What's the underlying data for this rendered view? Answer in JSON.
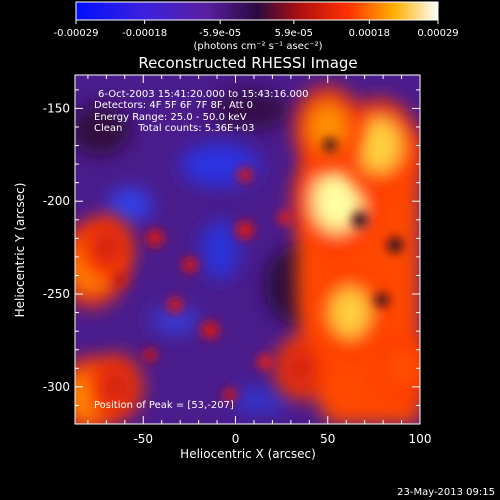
{
  "colorbar": {
    "tick_labels": [
      "-0.00029",
      "-0.00018",
      "-5.9e-05",
      "5.9e-05",
      "0.00018",
      "0.00029"
    ],
    "tick_values": [
      -0.00029,
      -0.00018,
      -5.9e-05,
      5.9e-05,
      0.00018,
      0.00029
    ],
    "range": [
      -0.00029,
      0.00029
    ],
    "unit_label": "(photons cm⁻² s⁻¹ asec⁻²)"
  },
  "info": {
    "line1": "6-Oct-2003 15:41:20.000 to 15:43:16.000",
    "line2": "Detectors: 4F 5F 6F 7F 8F, Att 0",
    "line3": "Energy Range: 25.0 - 50.0 keV",
    "line4": "Clean     Total counts: 5.36E+03",
    "peak": "Position of Peak = [53,-207]"
  },
  "footer": {
    "timestamp": "23-May-2013 09:15"
  },
  "chart_data": {
    "type": "heatmap",
    "title": "Reconstructed RHESSI Image",
    "xlabel": "Heliocentric X (arcsec)",
    "ylabel": "Heliocentric Y (arcsec)",
    "xlim": [
      -87,
      100
    ],
    "ylim": [
      -320,
      -132
    ],
    "x_ticks": [
      -50,
      0,
      50,
      100
    ],
    "x_tick_labels": [
      "-50",
      "0",
      "50",
      "100"
    ],
    "y_ticks": [
      -150,
      -200,
      -250,
      -300
    ],
    "y_tick_labels": [
      "-150",
      "-200",
      "-250",
      "-300"
    ],
    "colormap": [
      "#0000ff",
      "#5a1fd0",
      "#6a2aa0",
      "#b01010",
      "#ff4000",
      "#ffa000",
      "#ffff80",
      "#ffffff"
    ],
    "peak": [
      53,
      -207
    ],
    "bright_regions": [
      {
        "x": 55,
        "y": -200,
        "level": 0.0003
      },
      {
        "x": 78,
        "y": -170,
        "level": 0.00025
      },
      {
        "x": 62,
        "y": -260,
        "level": 0.00022
      },
      {
        "x": 50,
        "y": -160,
        "level": 0.0002
      },
      {
        "x": -78,
        "y": -235,
        "level": 0.0002
      },
      {
        "x": -80,
        "y": -305,
        "level": 0.00018
      },
      {
        "x": -65,
        "y": -300,
        "level": 0.00013
      },
      {
        "x": -70,
        "y": -225,
        "level": 0.00013
      },
      {
        "x": 35,
        "y": -290,
        "level": 0.00012
      },
      {
        "x": 90,
        "y": -290,
        "level": 0.00015
      }
    ]
  }
}
